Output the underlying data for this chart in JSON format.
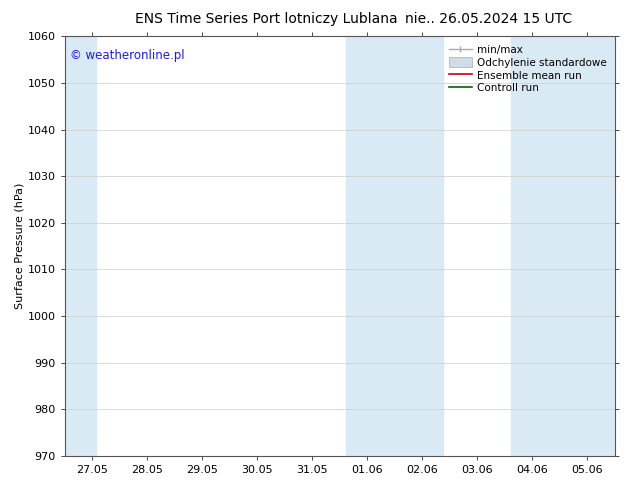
{
  "title": "ENS Time Series Port lotniczy Lublana",
  "title_right": "nie.. 26.05.2024 15 UTC",
  "ylabel": "Surface Pressure (hPa)",
  "ylim": [
    970,
    1060
  ],
  "yticks": [
    970,
    980,
    990,
    1000,
    1010,
    1020,
    1030,
    1040,
    1050,
    1060
  ],
  "xlabel_dates": [
    "27.05",
    "28.05",
    "29.05",
    "30.05",
    "31.05",
    "01.06",
    "02.06",
    "03.06",
    "04.06",
    "05.06"
  ],
  "watermark": "© weatheronline.pl",
  "watermark_color": "#1a1aff",
  "background_color": "#ffffff",
  "plot_bg_color": "#ffffff",
  "band_color": "#daeaf5",
  "shaded_bands": [
    {
      "xstart": -0.5,
      "xend": 0.07
    },
    {
      "xstart": 4.62,
      "xend": 6.38
    },
    {
      "xstart": 7.62,
      "xend": 9.5
    }
  ],
  "grid_color": "#cccccc",
  "title_fontsize": 10,
  "axis_fontsize": 8,
  "tick_fontsize": 8,
  "legend_fontsize": 7.5
}
